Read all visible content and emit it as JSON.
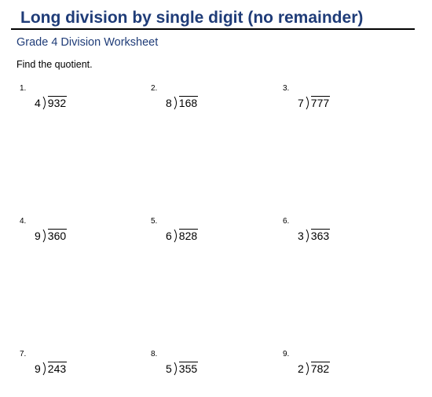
{
  "header": {
    "title": "Long division by single digit (no remainder)",
    "subtitle": "Grade 4 Division Worksheet",
    "instruction": "Find the quotient."
  },
  "problems": [
    {
      "number": "1.",
      "divisor": "4",
      "dividend": "932"
    },
    {
      "number": "2.",
      "divisor": "8",
      "dividend": "168"
    },
    {
      "number": "3.",
      "divisor": "7",
      "dividend": "777"
    },
    {
      "number": "4.",
      "divisor": "9",
      "dividend": "360"
    },
    {
      "number": "5.",
      "divisor": "6",
      "dividend": "828"
    },
    {
      "number": "6.",
      "divisor": "3",
      "dividend": "363"
    },
    {
      "number": "7.",
      "divisor": "9",
      "dividend": "243"
    },
    {
      "number": "8.",
      "divisor": "5",
      "dividend": "355"
    },
    {
      "number": "9.",
      "divisor": "2",
      "dividend": "782"
    }
  ],
  "colors": {
    "heading": "#1f3c78",
    "text": "#000000"
  }
}
